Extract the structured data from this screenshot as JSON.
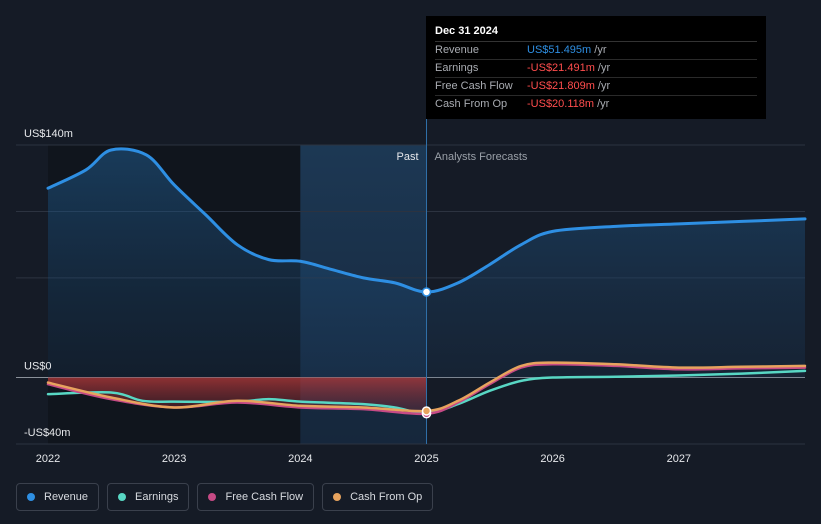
{
  "chart_data": {
    "type": "line",
    "y_axis_labels": [
      "US$140m",
      "US$0",
      "-US$40m"
    ],
    "ylim": [
      -40,
      140
    ],
    "x_ticks": [
      "2022",
      "2023",
      "2024",
      "2025",
      "2026",
      "2027"
    ],
    "x_tick_values": [
      2022,
      2023,
      2024,
      2025,
      2026,
      2027
    ],
    "xlim": [
      2022,
      2028
    ],
    "past_label": "Past",
    "forecast_label": "Analysts Forecasts",
    "divider_x": 2025,
    "highlight_band": [
      2024,
      2025
    ],
    "series": [
      {
        "name": "Revenue",
        "color": "#2e8fe3",
        "x": [
          2022.0,
          2022.3,
          2022.5,
          2022.78,
          2023.0,
          2023.25,
          2023.5,
          2023.75,
          2024.0,
          2024.25,
          2024.5,
          2024.75,
          2025.0,
          2025.25,
          2025.5,
          2025.75,
          2026.0,
          2026.5,
          2027.0,
          2027.5,
          2028.0
        ],
        "values": [
          114,
          125,
          137,
          134,
          116,
          98,
          80,
          71,
          70,
          65,
          60,
          57,
          51.5,
          57,
          68,
          80,
          88,
          91,
          92.5,
          94,
          95.5
        ]
      },
      {
        "name": "Earnings",
        "color": "#58d7c4",
        "x": [
          2022.0,
          2022.5,
          2022.75,
          2023.0,
          2023.5,
          2023.75,
          2024.0,
          2024.5,
          2024.75,
          2025.0,
          2025.25,
          2025.5,
          2025.75,
          2026.0,
          2026.5,
          2027.0,
          2027.5,
          2028.0
        ],
        "values": [
          -10,
          -9,
          -14,
          -14.5,
          -14.5,
          -13,
          -14.5,
          -16,
          -18,
          -21.5,
          -16,
          -8,
          -2,
          0,
          0.5,
          1.2,
          2.4,
          4
        ]
      },
      {
        "name": "Free Cash Flow",
        "color": "#c64a85",
        "x": [
          2022.0,
          2022.5,
          2023.0,
          2023.5,
          2024.0,
          2024.5,
          2025.0,
          2025.25,
          2025.5,
          2025.75,
          2026.0,
          2026.5,
          2027.0,
          2027.5,
          2028.0
        ],
        "values": [
          -4,
          -13,
          -18,
          -15,
          -18,
          -19,
          -21.8,
          -15,
          -4,
          6,
          8,
          7,
          5,
          5.5,
          6
        ]
      },
      {
        "name": "Cash From Op",
        "color": "#e7a35e",
        "x": [
          2022.0,
          2022.5,
          2023.0,
          2023.5,
          2024.0,
          2024.5,
          2025.0,
          2025.25,
          2025.5,
          2025.75,
          2026.0,
          2026.5,
          2027.0,
          2027.5,
          2028.0
        ],
        "values": [
          -3,
          -12,
          -18,
          -14,
          -17,
          -18,
          -20.1,
          -14,
          -3,
          7,
          9,
          8,
          6,
          6.5,
          7
        ]
      }
    ]
  },
  "tooltip": {
    "date": "Dec 31 2024",
    "rows": [
      {
        "label": "Revenue",
        "value": "US$51.495m",
        "unit": " /yr",
        "color": "#2e8fe3"
      },
      {
        "label": "Earnings",
        "value": "-US$21.491m",
        "unit": " /yr",
        "color": "#ff4d4d"
      },
      {
        "label": "Free Cash Flow",
        "value": "-US$21.809m",
        "unit": " /yr",
        "color": "#ff4d4d"
      },
      {
        "label": "Cash From Op",
        "value": "-US$20.118m",
        "unit": " /yr",
        "color": "#ff4d4d"
      }
    ]
  },
  "legend": [
    {
      "label": "Revenue",
      "color": "#2e8fe3"
    },
    {
      "label": "Earnings",
      "color": "#58d7c4"
    },
    {
      "label": "Free Cash Flow",
      "color": "#c64a85"
    },
    {
      "label": "Cash From Op",
      "color": "#e7a35e"
    }
  ]
}
